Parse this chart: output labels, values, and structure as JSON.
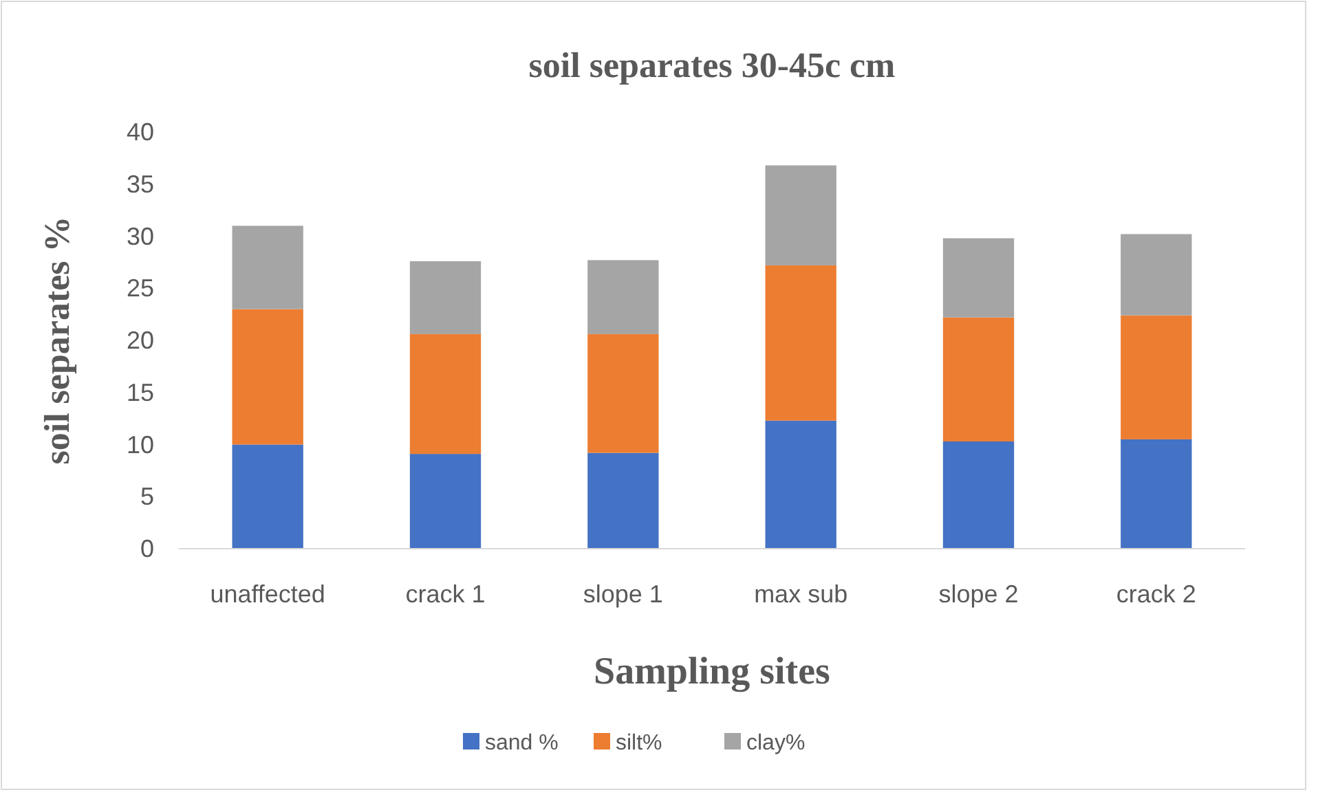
{
  "chart_data": {
    "type": "bar",
    "title": "soil separates 30-45c cm",
    "xlabel": "Sampling sites",
    "ylabel": "soil separates %",
    "stacked": true,
    "legend": "bottom",
    "categories": [
      "unaffected",
      "crack 1",
      "slope 1",
      "max sub",
      "slope 2",
      "crack 2"
    ],
    "series": [
      {
        "name": "sand %",
        "color": "#4472c4",
        "values": [
          10,
          9.1,
          9.2,
          12.3,
          10.3,
          10.5
        ]
      },
      {
        "name": "silt%",
        "color": "#ed7d31",
        "values": [
          13,
          11.5,
          11.4,
          14.9,
          11.9,
          11.9
        ]
      },
      {
        "name": "clay%",
        "color": "#a5a5a5",
        "values": [
          8,
          7,
          7.1,
          9.6,
          7.6,
          7.8
        ]
      }
    ],
    "ylim": [
      0,
      40
    ],
    "yticks": [
      0,
      5,
      10,
      15,
      20,
      25,
      30,
      35,
      40
    ]
  }
}
